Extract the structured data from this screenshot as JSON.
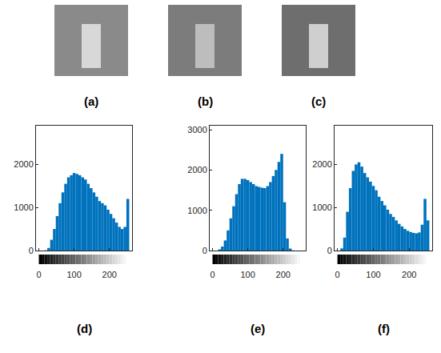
{
  "chart_data": [
    {
      "type": "histogram",
      "title": "(d)",
      "bins": [
        0,
        8,
        16,
        24,
        32,
        40,
        48,
        56,
        64,
        72,
        80,
        88,
        96,
        104,
        112,
        120,
        128,
        136,
        144,
        152,
        160,
        168,
        176,
        184,
        192,
        200,
        208,
        216,
        224,
        232,
        240,
        248,
        256
      ],
      "values": [
        0,
        0,
        5,
        60,
        250,
        500,
        800,
        1100,
        1350,
        1550,
        1700,
        1750,
        1800,
        1780,
        1750,
        1700,
        1650,
        1550,
        1450,
        1350,
        1250,
        1150,
        1100,
        1050,
        950,
        850,
        750,
        650,
        550,
        500,
        550,
        1200
      ],
      "color": "#0072bd",
      "xlim": [
        -8,
        264
      ],
      "ylim": [
        0,
        2900
      ],
      "xticks": [
        0,
        100,
        200
      ],
      "yticks": [
        0,
        1000,
        2000
      ],
      "grid": false
    },
    {
      "type": "histogram",
      "title": "(e)",
      "bins": [
        0,
        8,
        16,
        24,
        32,
        40,
        48,
        56,
        64,
        72,
        80,
        88,
        96,
        104,
        112,
        120,
        128,
        136,
        144,
        152,
        160,
        168,
        176,
        184,
        192,
        200,
        208,
        216,
        224,
        232,
        240,
        248,
        256
      ],
      "values": [
        0,
        0,
        30,
        100,
        250,
        500,
        800,
        1100,
        1400,
        1650,
        1780,
        1780,
        1750,
        1700,
        1650,
        1600,
        1580,
        1560,
        1550,
        1600,
        1700,
        1850,
        2000,
        2200,
        2400,
        1200,
        300,
        50,
        5,
        0,
        0,
        0
      ],
      "color": "#0072bd",
      "xlim": [
        -8,
        264
      ],
      "ylim": [
        0,
        3100
      ],
      "xticks": [
        0,
        100,
        200
      ],
      "yticks": [
        0,
        1000,
        2000,
        3000
      ],
      "grid": false
    },
    {
      "type": "histogram",
      "title": "(f)",
      "bins": [
        0,
        8,
        16,
        24,
        32,
        40,
        48,
        56,
        64,
        72,
        80,
        88,
        96,
        104,
        112,
        120,
        128,
        136,
        144,
        152,
        160,
        168,
        176,
        184,
        192,
        200,
        208,
        216,
        224,
        232,
        240,
        248,
        256
      ],
      "values": [
        0,
        50,
        300,
        900,
        1450,
        1850,
        2000,
        2050,
        1950,
        1800,
        1700,
        1600,
        1500,
        1400,
        1250,
        1150,
        1050,
        950,
        850,
        780,
        700,
        620,
        560,
        500,
        460,
        430,
        410,
        400,
        420,
        600,
        1200,
        700
      ],
      "color": "#0072bd",
      "xlim": [
        -8,
        264
      ],
      "ylim": [
        0,
        2900
      ],
      "xticks": [
        0,
        100,
        200
      ],
      "yticks": [
        0,
        1000,
        2000
      ],
      "grid": false
    }
  ],
  "images": [
    {
      "title": "(a)"
    },
    {
      "title": "(b)"
    },
    {
      "title": "(c)"
    }
  ]
}
